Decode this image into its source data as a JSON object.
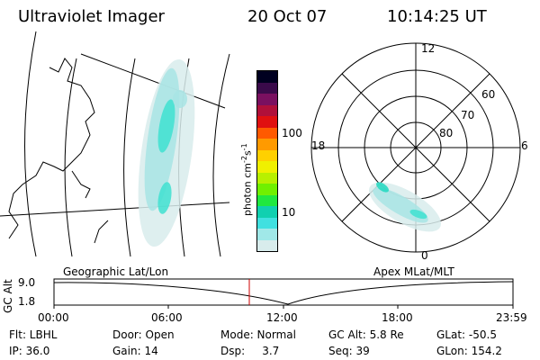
{
  "header": {
    "instrument": "Ultraviolet Imager",
    "date": "20 Oct 07",
    "time": "10:14:25 UT"
  },
  "colorbar": {
    "title_main": "photon cm",
    "title_exp1": "-2",
    "title_mid": "s",
    "title_exp2": "-1",
    "ticks": [
      "100",
      "10"
    ],
    "colors": [
      "#000020",
      "#3a0a4a",
      "#7a1060",
      "#b0103a",
      "#e01010",
      "#ff5a00",
      "#ff9a00",
      "#ffd000",
      "#f0f000",
      "#b8f000",
      "#70f000",
      "#20e840",
      "#10d0b0",
      "#40e0e0",
      "#a0e8e8",
      "#d8ecec"
    ]
  },
  "geo_map": {
    "aurora_colors": [
      "#d8ecec",
      "#a8e4e4",
      "#40e0d0",
      "#20d8c0"
    ]
  },
  "polar_plot": {
    "mlt_labels": {
      "top": "12",
      "left": "18",
      "right": "6",
      "bottom": "0"
    },
    "lat_labels": [
      "60",
      "70",
      "80"
    ]
  },
  "timeline": {
    "left_label": "Geographic Lat/Lon",
    "right_label": "Apex MLat/MLT",
    "axis_title": "GC Alt",
    "y_ticks": [
      "9.0",
      "1.8"
    ],
    "x_ticks": [
      "00:00",
      "06:00",
      "12:00",
      "18:00",
      "23:59"
    ],
    "cursor_color": "#cc0000"
  },
  "footer": {
    "row1": [
      {
        "label": "Flt: LBHL"
      },
      {
        "label": "Door: Open"
      },
      {
        "label": "Mode: Normal"
      },
      {
        "label": "GC Alt: 5.8 Re"
      },
      {
        "label": "GLat: -50.5"
      }
    ],
    "row2": [
      {
        "label": "IP: 36.0"
      },
      {
        "label": "Gain: 14"
      },
      {
        "label": "Dsp:     3.7"
      },
      {
        "label": "Seq: 39"
      },
      {
        "label": "GLon: 154.2"
      }
    ]
  }
}
